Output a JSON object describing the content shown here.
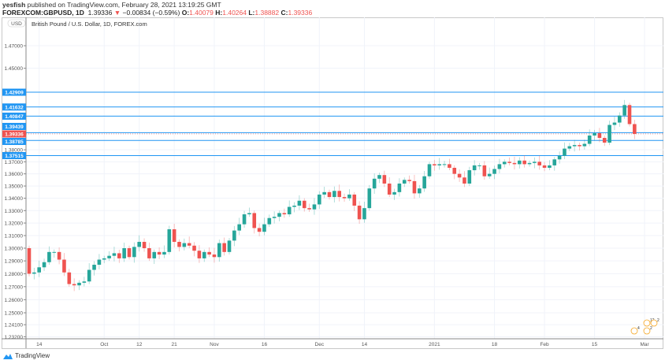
{
  "header": {
    "author": "yesfish",
    "published": "published on TradingView.com, February 28, 2021 13:19:25 GMT",
    "symbol": "FOREXCOM:GBPUSD, 1D",
    "last": "1.39336",
    "change": "−0.00834 (−0.59%)",
    "open_label": "O:",
    "open": "1.40079",
    "high_label": "H:",
    "high": "1.40264",
    "low_label": "L:",
    "low": "1.38882",
    "close_label": "C:",
    "close": "1.39336"
  },
  "legend_title": "British Pound / U.S. Dollar, 1D, FOREX.com",
  "currency_badge": "USD",
  "footer_brand": "TradingView",
  "colors": {
    "up": "#26a69a",
    "down": "#ef5350",
    "line": "#2196f3",
    "grid": "#f0f3fa"
  },
  "chart_data": {
    "type": "candlestick",
    "title": "British Pound / U.S. Dollar, 1D, FOREX.com",
    "scale": "log",
    "ylim": [
      1.228,
      1.485
    ],
    "first_open": 1.3,
    "closes": [
      1.28,
      1.281,
      1.285,
      1.289,
      1.297,
      1.297,
      1.291,
      1.281,
      1.272,
      1.271,
      1.273,
      1.274,
      1.283,
      1.287,
      1.291,
      1.292,
      1.294,
      1.296,
      1.292,
      1.3,
      1.293,
      1.301,
      1.305,
      1.3,
      1.292,
      1.297,
      1.295,
      1.297,
      1.315,
      1.305,
      1.301,
      1.304,
      1.302,
      1.298,
      1.292,
      1.297,
      1.295,
      1.293,
      1.304,
      1.297,
      1.306,
      1.314,
      1.319,
      1.327,
      1.328,
      1.316,
      1.313,
      1.319,
      1.324,
      1.325,
      1.328,
      1.327,
      1.333,
      1.334,
      1.338,
      1.332,
      1.331,
      1.335,
      1.343,
      1.345,
      1.341,
      1.346,
      1.341,
      1.34,
      1.343,
      1.334,
      1.323,
      1.332,
      1.348,
      1.356,
      1.359,
      1.352,
      1.343,
      1.345,
      1.352,
      1.355,
      1.354,
      1.344,
      1.348,
      1.358,
      1.368,
      1.367,
      1.368,
      1.368,
      1.365,
      1.36,
      1.357,
      1.352,
      1.363,
      1.367,
      1.367,
      1.358,
      1.36,
      1.364,
      1.368,
      1.37,
      1.369,
      1.368,
      1.371,
      1.368,
      1.369,
      1.37,
      1.367,
      1.365,
      1.367,
      1.372,
      1.375,
      1.381,
      1.383,
      1.384,
      1.383,
      1.385,
      1.392,
      1.394,
      1.39,
      1.386,
      1.401,
      1.403,
      1.409,
      1.418,
      1.4017,
      1.39336
    ],
    "y_ticks": [
      "1.47000",
      "1.45000",
      "1.38000",
      "1.37000",
      "1.36000",
      "1.35000",
      "1.34000",
      "1.33000",
      "1.32000",
      "1.31000",
      "1.30000",
      "1.29000",
      "1.28000",
      "1.27000",
      "1.26000",
      "1.25000",
      "1.24100",
      "1.23200"
    ],
    "x_ticks": [
      {
        "label": "14",
        "index": 2
      },
      {
        "label": "Oct",
        "index": 15
      },
      {
        "label": "12",
        "index": 22
      },
      {
        "label": "21",
        "index": 29
      },
      {
        "label": "Nov",
        "index": 37
      },
      {
        "label": "16",
        "index": 47
      },
      {
        "label": "Dec",
        "index": 58
      },
      {
        "label": "14",
        "index": 67
      },
      {
        "label": "2021",
        "index": 81
      },
      {
        "label": "18",
        "index": 93
      },
      {
        "label": "Feb",
        "index": 103
      },
      {
        "label": "15",
        "index": 113
      },
      {
        "label": "Mar",
        "index": 123
      }
    ],
    "horizontal_lines": [
      "1.42909",
      "1.41632",
      "1.40847",
      "1.39439",
      "1.38785",
      "1.37515"
    ],
    "last_price_label": "1.39336",
    "events": [
      {
        "label": "4"
      },
      {
        "label": "2"
      },
      {
        "label": "12"
      },
      {
        "label": "2"
      }
    ]
  }
}
